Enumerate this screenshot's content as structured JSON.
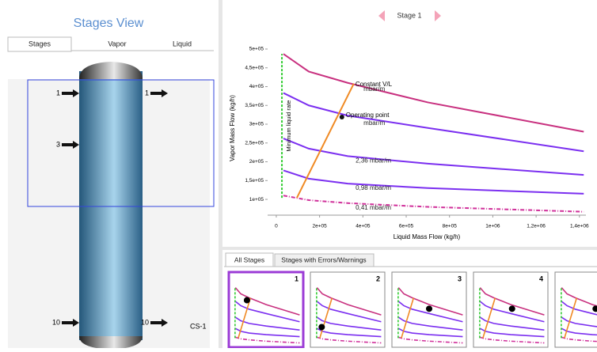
{
  "left_panel": {
    "title": "Stages View",
    "tabs": [
      "Stages",
      "Vapor",
      "Liquid"
    ],
    "column": {
      "name": "CS-1",
      "feeds_left": [
        "1",
        "3",
        "10"
      ],
      "feeds_right": [
        "1",
        "10"
      ]
    }
  },
  "header": {
    "stage": "Stage 1"
  },
  "chart_data": {
    "type": "line",
    "xlabel": "Liquid Mass Flow (kg/h)",
    "ylabel": "Vapor Mass Flow (kg/h)",
    "xlim": [
      -40000,
      1430000
    ],
    "ylim": [
      58000,
      521000
    ],
    "xticks": [
      0,
      {
        "value": 200000,
        "label": "2e+05"
      },
      {
        "value": 400000,
        "label": "4e+05"
      },
      {
        "value": 600000,
        "label": "6e+05"
      },
      {
        "value": 800000,
        "label": "8e+05"
      },
      {
        "value": 1000000,
        "label": "1e+06"
      },
      {
        "value": 1200000,
        "label": "1,2e+06"
      },
      {
        "value": 1400000,
        "label": "1,4e+06"
      }
    ],
    "yticks": [
      {
        "value": 100000,
        "label": "1e+05"
      },
      {
        "value": 150000,
        "label": "1,5e+05"
      },
      {
        "value": 200000,
        "label": "2e+05"
      },
      {
        "value": 250000,
        "label": "2,5e+05"
      },
      {
        "value": 300000,
        "label": "3e+05"
      },
      {
        "value": 350000,
        "label": "3,5e+05"
      },
      {
        "value": 400000,
        "label": "4e+05"
      },
      {
        "value": 450000,
        "label": "4,5e+05"
      },
      {
        "value": 500000,
        "label": "5e+05"
      }
    ],
    "series": [
      {
        "label": "mbar/m",
        "color": "#c8307f",
        "x": [
          33000,
          150000,
          330000,
          700000,
          1420000
        ],
        "values": [
          487000,
          440000,
          410000,
          358000,
          280000
        ]
      },
      {
        "label": "mbar/m",
        "color": "#7b2ff0",
        "x": [
          33000,
          150000,
          330000,
          700000,
          1420000
        ],
        "values": [
          383000,
          350000,
          323000,
          290000,
          228000
        ]
      },
      {
        "label": "2,36 mbar/m",
        "color": "#7b2ff0",
        "x": [
          33000,
          150000,
          330000,
          700000,
          1420000
        ],
        "values": [
          262000,
          235000,
          215000,
          195000,
          165000
        ]
      },
      {
        "label": "0,98 mbar/m",
        "color": "#7b2ff0",
        "x": [
          33000,
          150000,
          330000,
          700000,
          1420000
        ],
        "values": [
          177000,
          155000,
          142000,
          130000,
          115000
        ]
      },
      {
        "label": "0,41 mbar/m",
        "color": "#d0309a",
        "dash": "dashdot",
        "x": [
          33000,
          150000,
          330000,
          700000,
          1420000
        ],
        "values": [
          110000,
          98000,
          90000,
          80000,
          67000
        ]
      },
      {
        "label": "Constant V/L",
        "color": "#f08a24",
        "x": [
          95000,
          358000
        ],
        "values": [
          104000,
          408000
        ]
      },
      {
        "label": "Minimum liquid rate",
        "color": "#33cc33",
        "dash": "dash",
        "x": [
          26000,
          26000
        ],
        "values": [
          104000,
          487000
        ]
      }
    ],
    "points": [
      {
        "label": "Operating point",
        "x": 303000,
        "y": 319000,
        "color": "#111111"
      }
    ]
  },
  "bottom_panel": {
    "tabs": [
      "All Stages",
      "Stages with Errors/Warnings"
    ],
    "thumbnails": [
      "1",
      "2",
      "3",
      "4"
    ]
  }
}
